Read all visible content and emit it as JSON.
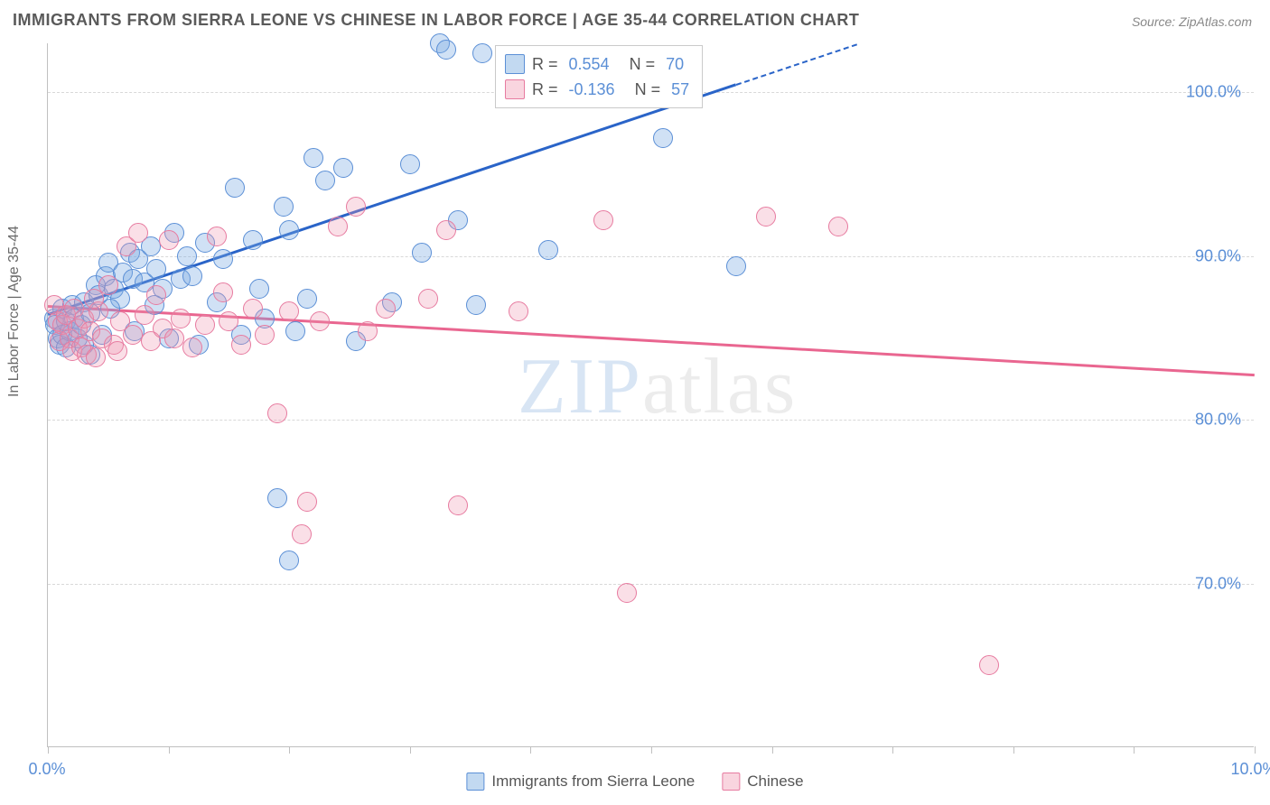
{
  "title": "IMMIGRANTS FROM SIERRA LEONE VS CHINESE IN LABOR FORCE | AGE 35-44 CORRELATION CHART",
  "source": "Source: ZipAtlas.com",
  "ylabel": "In Labor Force | Age 35-44",
  "watermark_a": "ZIP",
  "watermark_b": "atlas",
  "chart": {
    "type": "scatter",
    "xlim": [
      0,
      10
    ],
    "ylim": [
      60,
      103
    ],
    "xticks": [
      0,
      1,
      2,
      3,
      4,
      5,
      6,
      7,
      8,
      9,
      10
    ],
    "xtick_labels": {
      "0": "0.0%",
      "10": "10.0%"
    },
    "yticks": [
      70,
      80,
      90,
      100
    ],
    "ytick_labels": [
      "70.0%",
      "80.0%",
      "90.0%",
      "100.0%"
    ],
    "background_color": "#ffffff",
    "grid_color": "#d8d8d8",
    "series": [
      {
        "name": "Immigrants from Sierra Leone",
        "key": "blue",
        "R": "0.554",
        "N": "70",
        "color_fill": "rgba(120,170,225,0.35)",
        "color_stroke": "#5b8fd6",
        "line_color": "#2a64c8",
        "regression": {
          "x1": 0,
          "y1": 86.5,
          "x2": 6.7,
          "y2": 103,
          "dash_after_x": 5.7
        },
        "points": [
          [
            0.05,
            86.2
          ],
          [
            0.06,
            85.8
          ],
          [
            0.08,
            85.0
          ],
          [
            0.1,
            84.6
          ],
          [
            0.12,
            85.2
          ],
          [
            0.12,
            86.8
          ],
          [
            0.15,
            86.0
          ],
          [
            0.15,
            84.4
          ],
          [
            0.18,
            85.4
          ],
          [
            0.2,
            87.0
          ],
          [
            0.22,
            86.2
          ],
          [
            0.25,
            85.0
          ],
          [
            0.28,
            85.8
          ],
          [
            0.3,
            87.2
          ],
          [
            0.3,
            84.6
          ],
          [
            0.35,
            86.5
          ],
          [
            0.4,
            88.2
          ],
          [
            0.42,
            87.6
          ],
          [
            0.45,
            85.2
          ],
          [
            0.48,
            88.8
          ],
          [
            0.5,
            89.6
          ],
          [
            0.55,
            88.0
          ],
          [
            0.6,
            87.4
          ],
          [
            0.62,
            89.0
          ],
          [
            0.68,
            90.2
          ],
          [
            0.7,
            88.6
          ],
          [
            0.72,
            85.4
          ],
          [
            0.75,
            89.8
          ],
          [
            0.8,
            88.4
          ],
          [
            0.85,
            90.6
          ],
          [
            0.9,
            89.2
          ],
          [
            0.95,
            88.0
          ],
          [
            1.0,
            85.0
          ],
          [
            1.05,
            91.4
          ],
          [
            1.1,
            88.6
          ],
          [
            1.15,
            90.0
          ],
          [
            1.2,
            88.8
          ],
          [
            1.25,
            84.6
          ],
          [
            1.3,
            90.8
          ],
          [
            1.4,
            87.2
          ],
          [
            1.45,
            89.8
          ],
          [
            1.55,
            94.2
          ],
          [
            1.6,
            85.2
          ],
          [
            1.7,
            91.0
          ],
          [
            1.75,
            88.0
          ],
          [
            1.8,
            86.2
          ],
          [
            1.9,
            75.2
          ],
          [
            1.95,
            93.0
          ],
          [
            2.0,
            91.6
          ],
          [
            2.0,
            71.4
          ],
          [
            2.05,
            85.4
          ],
          [
            2.15,
            87.4
          ],
          [
            2.2,
            96.0
          ],
          [
            2.3,
            94.6
          ],
          [
            2.45,
            95.4
          ],
          [
            2.55,
            84.8
          ],
          [
            2.85,
            87.2
          ],
          [
            3.0,
            95.6
          ],
          [
            3.1,
            90.2
          ],
          [
            3.25,
            103.0
          ],
          [
            3.3,
            102.6
          ],
          [
            3.4,
            92.2
          ],
          [
            3.55,
            87.0
          ],
          [
            3.6,
            102.4
          ],
          [
            4.15,
            90.4
          ],
          [
            5.1,
            97.2
          ],
          [
            5.7,
            89.4
          ],
          [
            0.35,
            84.0
          ],
          [
            0.52,
            86.8
          ],
          [
            0.88,
            87.0
          ]
        ]
      },
      {
        "name": "Chinese",
        "key": "pink",
        "R": "-0.136",
        "N": "57",
        "color_fill": "rgba(240,150,175,0.30)",
        "color_stroke": "#e77ba0",
        "line_color": "#e96690",
        "regression": {
          "x1": 0,
          "y1": 87.0,
          "x2": 10,
          "y2": 82.8
        },
        "points": [
          [
            0.05,
            87.0
          ],
          [
            0.08,
            86.0
          ],
          [
            0.1,
            84.8
          ],
          [
            0.12,
            85.8
          ],
          [
            0.15,
            86.4
          ],
          [
            0.18,
            85.0
          ],
          [
            0.2,
            84.2
          ],
          [
            0.22,
            86.8
          ],
          [
            0.25,
            85.6
          ],
          [
            0.28,
            84.4
          ],
          [
            0.3,
            86.2
          ],
          [
            0.32,
            84.0
          ],
          [
            0.35,
            85.4
          ],
          [
            0.4,
            83.8
          ],
          [
            0.42,
            86.6
          ],
          [
            0.45,
            85.0
          ],
          [
            0.5,
            88.2
          ],
          [
            0.55,
            84.6
          ],
          [
            0.6,
            86.0
          ],
          [
            0.65,
            90.6
          ],
          [
            0.7,
            85.2
          ],
          [
            0.75,
            91.4
          ],
          [
            0.8,
            86.4
          ],
          [
            0.85,
            84.8
          ],
          [
            0.9,
            87.6
          ],
          [
            0.95,
            85.6
          ],
          [
            1.0,
            91.0
          ],
          [
            1.05,
            85.0
          ],
          [
            1.1,
            86.2
          ],
          [
            1.2,
            84.4
          ],
          [
            1.3,
            85.8
          ],
          [
            1.4,
            91.2
          ],
          [
            1.5,
            86.0
          ],
          [
            1.6,
            84.6
          ],
          [
            1.7,
            86.8
          ],
          [
            1.8,
            85.2
          ],
          [
            1.9,
            80.4
          ],
          [
            2.0,
            86.6
          ],
          [
            2.1,
            73.0
          ],
          [
            2.15,
            75.0
          ],
          [
            2.25,
            86.0
          ],
          [
            2.4,
            91.8
          ],
          [
            2.55,
            93.0
          ],
          [
            2.65,
            85.4
          ],
          [
            2.8,
            86.8
          ],
          [
            3.15,
            87.4
          ],
          [
            3.3,
            91.6
          ],
          [
            3.4,
            74.8
          ],
          [
            3.9,
            86.6
          ],
          [
            4.6,
            92.2
          ],
          [
            4.8,
            69.4
          ],
          [
            5.95,
            92.4
          ],
          [
            6.55,
            91.8
          ],
          [
            7.8,
            65.0
          ],
          [
            0.38,
            87.4
          ],
          [
            0.58,
            84.2
          ],
          [
            1.45,
            87.8
          ]
        ]
      }
    ]
  },
  "legend_bottom": [
    {
      "key": "blue",
      "label": "Immigrants from Sierra Leone"
    },
    {
      "key": "pink",
      "label": "Chinese"
    }
  ],
  "colors": {
    "title": "#5a5a5a",
    "axis_text": "#5b8fd6",
    "label_text": "#6a6a6a"
  },
  "typography": {
    "title_fontsize": 18,
    "axis_fontsize": 18,
    "label_fontsize": 16
  }
}
